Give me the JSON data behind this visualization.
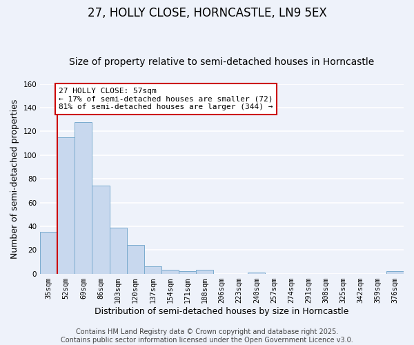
{
  "title": "27, HOLLY CLOSE, HORNCASTLE, LN9 5EX",
  "subtitle": "Size of property relative to semi-detached houses in Horncastle",
  "xlabel": "Distribution of semi-detached houses by size in Horncastle",
  "ylabel": "Number of semi-detached properties",
  "categories": [
    "35sqm",
    "52sqm",
    "69sqm",
    "86sqm",
    "103sqm",
    "120sqm",
    "137sqm",
    "154sqm",
    "171sqm",
    "188sqm",
    "206sqm",
    "223sqm",
    "240sqm",
    "257sqm",
    "274sqm",
    "291sqm",
    "308sqm",
    "325sqm",
    "342sqm",
    "359sqm",
    "376sqm"
  ],
  "values": [
    35,
    115,
    128,
    74,
    39,
    24,
    6,
    3,
    2,
    3,
    0,
    0,
    1,
    0,
    0,
    0,
    0,
    0,
    0,
    0,
    2
  ],
  "bar_color": "#c8d8ee",
  "bar_edge_color": "#7aabce",
  "vline_color": "#cc0000",
  "vline_x_index": 1,
  "ylim": [
    0,
    160
  ],
  "yticks": [
    0,
    20,
    40,
    60,
    80,
    100,
    120,
    140,
    160
  ],
  "annotation_title": "27 HOLLY CLOSE: 57sqm",
  "annotation_line1": "← 17% of semi-detached houses are smaller (72)",
  "annotation_line2": "81% of semi-detached houses are larger (344) →",
  "annotation_box_color": "#ffffff",
  "annotation_box_edge": "#cc0000",
  "footer1": "Contains HM Land Registry data © Crown copyright and database right 2025.",
  "footer2": "Contains public sector information licensed under the Open Government Licence v3.0.",
  "background_color": "#eef2fa",
  "plot_bg_color": "#eef2fa",
  "grid_color": "#ffffff",
  "title_fontsize": 12,
  "subtitle_fontsize": 10,
  "axis_label_fontsize": 9,
  "tick_fontsize": 7.5,
  "footer_fontsize": 7,
  "annotation_fontsize": 8
}
